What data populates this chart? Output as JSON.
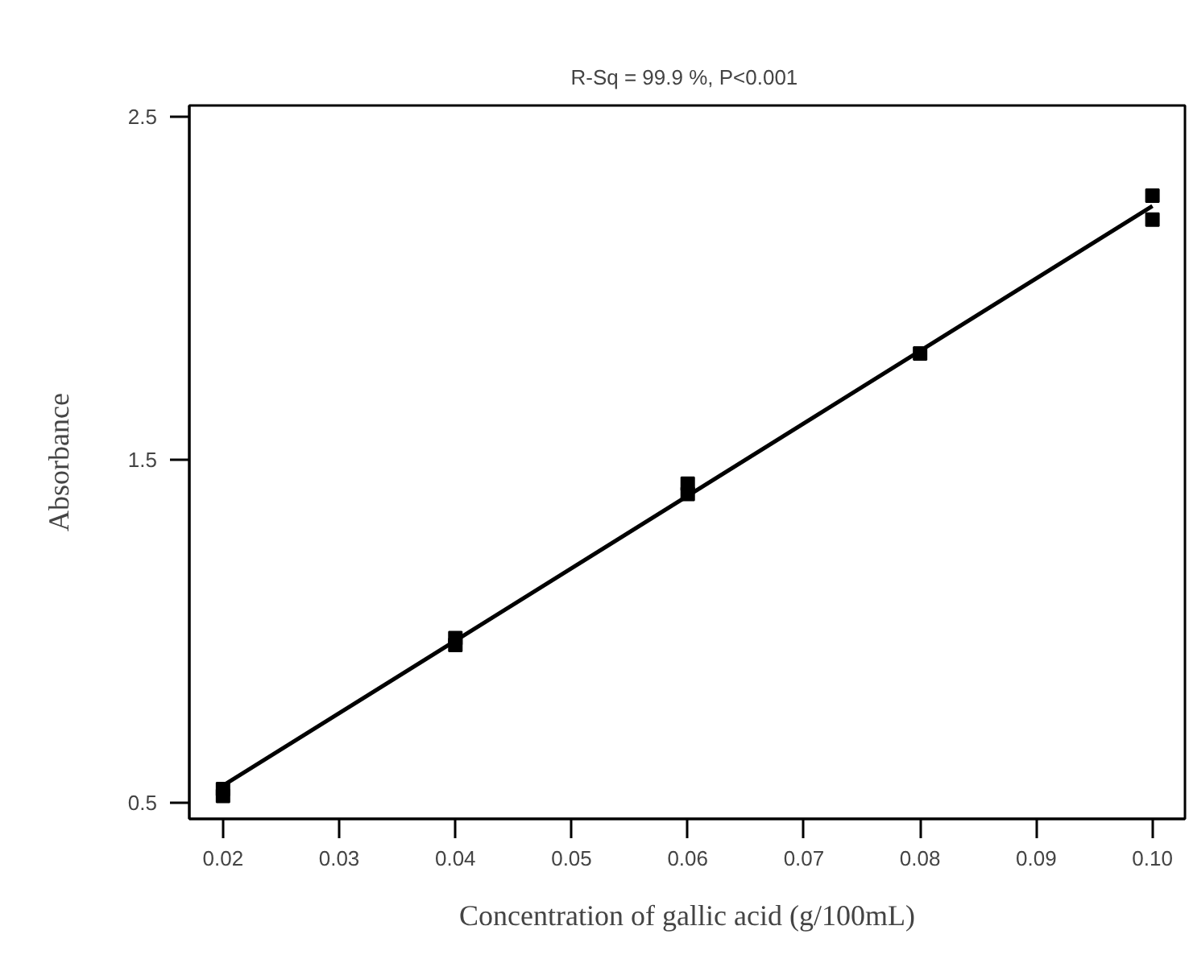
{
  "chart_data": {
    "type": "scatter",
    "title": "R-Sq =  99.9 %, P<0.001",
    "xlabel": "Concentration of gallic acid (g/100mL)",
    "ylabel": "Absorbance",
    "series": [
      {
        "color": "#000000",
        "marker": "square",
        "x": [
          0.02,
          0.02,
          0.04,
          0.04,
          0.06,
          0.06,
          0.08,
          0.1,
          0.1
        ],
        "values": [
          0.52,
          0.54,
          0.96,
          0.98,
          1.4,
          1.43,
          1.81,
          2.27,
          2.2
        ]
      },
      {
        "type": "line",
        "color": "#000000",
        "marker": "none",
        "x": [
          0.02,
          0.1
        ],
        "values": [
          0.55,
          2.24
        ]
      }
    ],
    "xlim": [
      0.0171,
      0.1028
    ],
    "ylim": [
      0.453,
      2.533
    ],
    "xticks": [
      {
        "value": 0.02,
        "label": "0.02"
      },
      {
        "value": 0.03,
        "label": "0.03"
      },
      {
        "value": 0.04,
        "label": "0.04"
      },
      {
        "value": 0.05,
        "label": "0.05"
      },
      {
        "value": 0.06,
        "label": "0.06"
      },
      {
        "value": 0.07,
        "label": "0.07"
      },
      {
        "value": 0.08,
        "label": "0.08"
      },
      {
        "value": 0.09,
        "label": "0.09"
      },
      {
        "value": 0.1,
        "label": "0.10"
      }
    ],
    "yticks": [
      2.5,
      1.5,
      0.5
    ],
    "grid": false
  }
}
